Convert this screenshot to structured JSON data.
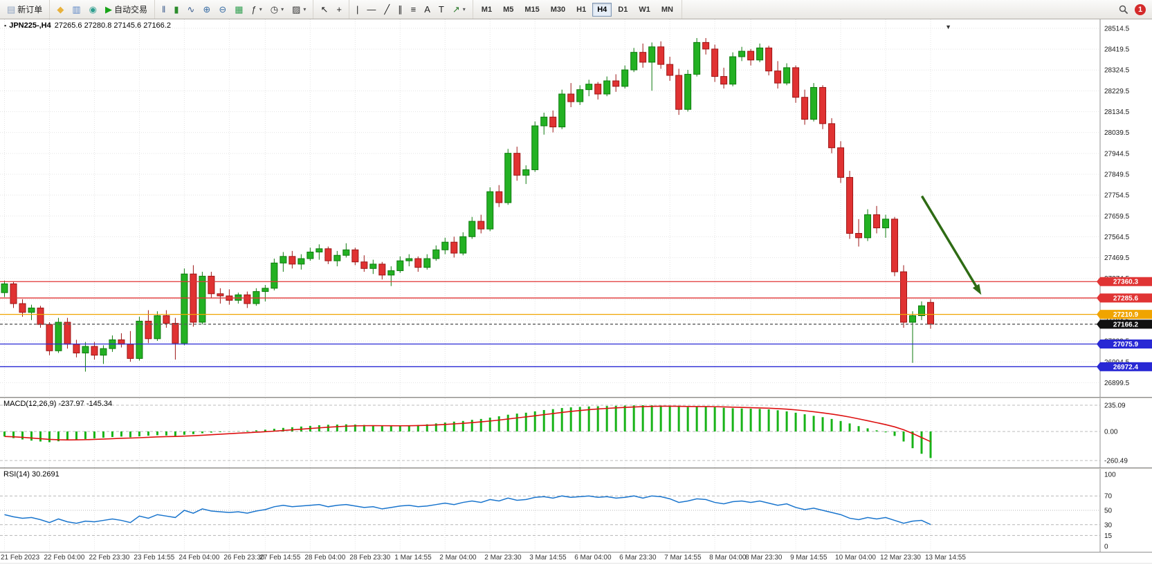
{
  "toolbar": {
    "new_order": {
      "label": "新订单",
      "icon": "order-ticket-icon",
      "glyph": "▤",
      "color": "#8fa3c0"
    },
    "quick_icons": [
      {
        "name": "metaeditor-button",
        "icon": "tools-icon",
        "glyph": "◆",
        "color": "#e8b23c"
      },
      {
        "name": "new-chart-button",
        "icon": "chart-window-icon",
        "glyph": "▥",
        "color": "#5a84c4"
      },
      {
        "name": "mql5-community-button",
        "icon": "globe-icon",
        "glyph": "◉",
        "color": "#2f9e8f"
      }
    ],
    "auto_trading": {
      "label": "自动交易",
      "icon": "play-icon",
      "glyph": "▶",
      "color": "#17a317"
    },
    "chart_tools": [
      {
        "name": "bar-chart-button",
        "icon": "ohlc-bars-icon",
        "glyph": "‖",
        "color": "#3a5a8c"
      },
      {
        "name": "candlestick-chart-button",
        "icon": "candlestick-icon",
        "glyph": "▮",
        "color": "#2c8c2c"
      },
      {
        "name": "line-chart-button",
        "icon": "line-chart-icon",
        "glyph": "∿",
        "color": "#3a5a8c"
      },
      {
        "name": "zoom-in-button",
        "icon": "zoom-in-icon",
        "glyph": "⊕",
        "color": "#3a6ea5"
      },
      {
        "name": "zoom-out-button",
        "icon": "zoom-out-icon",
        "glyph": "⊖",
        "color": "#3a6ea5"
      },
      {
        "name": "tile-windows-button",
        "icon": "tile-windows-icon",
        "glyph": "▦",
        "color": "#2f9e4f"
      },
      {
        "name": "indicators-button",
        "icon": "indicators-icon",
        "glyph": "ƒ",
        "color": "#333333",
        "dropdown": true
      },
      {
        "name": "periods-button",
        "icon": "clock-icon",
        "glyph": "◷",
        "color": "#333333",
        "dropdown": true
      },
      {
        "name": "templates-button",
        "icon": "template-icon",
        "glyph": "▨",
        "color": "#333333",
        "dropdown": true
      }
    ],
    "cursor_tools": [
      {
        "name": "cursor-button",
        "icon": "cursor-icon",
        "glyph": "↖",
        "color": "#222222"
      },
      {
        "name": "crosshair-button",
        "icon": "crosshair-icon",
        "glyph": "+",
        "color": "#222222"
      }
    ],
    "draw_tools": [
      {
        "name": "vertical-line-button",
        "icon": "vertical-line-icon",
        "glyph": "|",
        "color": "#222222"
      },
      {
        "name": "horizontal-line-button",
        "icon": "horizontal-line-icon",
        "glyph": "—",
        "color": "#222222"
      },
      {
        "name": "trendline-button",
        "icon": "trendline-icon",
        "glyph": "╱",
        "color": "#222222"
      },
      {
        "name": "channel-button",
        "icon": "channel-icon",
        "glyph": "∥",
        "color": "#222222"
      },
      {
        "name": "fibonacci-button",
        "icon": "fibonacci-icon",
        "glyph": "≡",
        "color": "#222222"
      },
      {
        "name": "text-button",
        "icon": "text-icon",
        "glyph": "A",
        "color": "#222222"
      },
      {
        "name": "label-button",
        "icon": "text-label-icon",
        "glyph": "T",
        "color": "#222222"
      },
      {
        "name": "arrows-button",
        "icon": "arrow-objects-icon",
        "glyph": "↗",
        "color": "#2c7a2c",
        "dropdown": true
      }
    ],
    "timeframes": [
      "M1",
      "M5",
      "M15",
      "M30",
      "H1",
      "H4",
      "D1",
      "W1",
      "MN"
    ],
    "active_timeframe": "H4",
    "notification_count": "1"
  },
  "chart": {
    "title": "JPN225-,H4",
    "ohlc": "27265.6 27280.8 27145.6 27166.2"
  },
  "indicators": {
    "macd_label": "MACD(12,26,9) -237.97 -145.34",
    "rsi_label": "RSI(14) 30.2691"
  },
  "chart_data": [
    {
      "type": "candlestick",
      "symbol": "JPN225-",
      "timeframe": "H4",
      "ohlc_current": {
        "open": 27265.6,
        "high": 27280.8,
        "low": 27145.6,
        "close": 27166.2
      },
      "y_axis": {
        "min": 26860,
        "max": 28530,
        "ticks": [
          28514.5,
          28419.5,
          28324.5,
          28229.5,
          28134.5,
          28039.5,
          27944.5,
          27849.5,
          27754.5,
          27659.5,
          27564.5,
          27469.5,
          27374.5,
          27279.5,
          27184.5,
          27089.5,
          26994.5,
          26899.5
        ]
      },
      "candle_area_frac": 0.85,
      "shift_marker_frac": 0.862,
      "x_labels": [
        "21 Feb 2023",
        "22 Feb 04:00",
        "22 Feb 23:30",
        "23 Feb 14:55",
        "24 Feb 04:00",
        "26 Feb 23:30",
        "27 Feb 14:55",
        "28 Feb 04:00",
        "28 Feb 23:30",
        "1 Mar 14:55",
        "2 Mar 04:00",
        "2 Mar 23:30",
        "3 Mar 14:55",
        "6 Mar 04:00",
        "6 Mar 23:30",
        "7 Mar 14:55",
        "8 Mar 04:00",
        "8 Mar 23:30",
        "9 Mar 14:55",
        "10 Mar 04:00",
        "12 Mar 23:30",
        "13 Mar 14:55"
      ],
      "x_label_indices": [
        0,
        5,
        10,
        15,
        20,
        25,
        29,
        34,
        39,
        44,
        49,
        54,
        59,
        64,
        69,
        74,
        79,
        83,
        88,
        93,
        98,
        103
      ],
      "candles": [
        [
          27310,
          27365,
          27290,
          27350
        ],
        [
          27350,
          27360,
          27240,
          27260
        ],
        [
          27260,
          27280,
          27200,
          27220
        ],
        [
          27220,
          27255,
          27185,
          27240
        ],
        [
          27240,
          27250,
          27150,
          27165
        ],
        [
          27165,
          27175,
          27025,
          27045
        ],
        [
          27045,
          27195,
          27035,
          27175
        ],
        [
          27175,
          27195,
          27055,
          27075
        ],
        [
          27075,
          27095,
          27015,
          27035
        ],
        [
          27035,
          27085,
          26950,
          27065
        ],
        [
          27065,
          27085,
          27005,
          27025
        ],
        [
          27025,
          27070,
          26985,
          27055
        ],
        [
          27055,
          27115,
          27040,
          27095
        ],
        [
          27095,
          27125,
          27060,
          27075
        ],
        [
          27075,
          27135,
          26995,
          27010
        ],
        [
          27010,
          27200,
          27000,
          27180
        ],
        [
          27180,
          27230,
          27080,
          27100
        ],
        [
          27100,
          27225,
          27090,
          27205
        ],
        [
          27205,
          27230,
          27150,
          27170
        ],
        [
          27170,
          27195,
          27005,
          27080
        ],
        [
          27080,
          27420,
          27070,
          27395
        ],
        [
          27395,
          27435,
          27155,
          27175
        ],
        [
          27175,
          27405,
          27165,
          27385
        ],
        [
          27385,
          27405,
          27285,
          27305
        ],
        [
          27305,
          27330,
          27260,
          27295
        ],
        [
          27295,
          27325,
          27255,
          27275
        ],
        [
          27275,
          27310,
          27260,
          27300
        ],
        [
          27300,
          27315,
          27240,
          27260
        ],
        [
          27260,
          27330,
          27250,
          27315
        ],
        [
          27315,
          27345,
          27270,
          27330
        ],
        [
          27330,
          27465,
          27320,
          27445
        ],
        [
          27445,
          27495,
          27405,
          27475
        ],
        [
          27475,
          27500,
          27420,
          27440
        ],
        [
          27440,
          27485,
          27415,
          27465
        ],
        [
          27465,
          27515,
          27455,
          27495
        ],
        [
          27495,
          27530,
          27460,
          27510
        ],
        [
          27510,
          27520,
          27440,
          27455
        ],
        [
          27455,
          27500,
          27430,
          27480
        ],
        [
          27480,
          27535,
          27470,
          27505
        ],
        [
          27505,
          27515,
          27435,
          27450
        ],
        [
          27450,
          27480,
          27405,
          27420
        ],
        [
          27420,
          27460,
          27395,
          27440
        ],
        [
          27440,
          27450,
          27370,
          27390
        ],
        [
          27390,
          27430,
          27340,
          27410
        ],
        [
          27410,
          27475,
          27400,
          27455
        ],
        [
          27455,
          27485,
          27430,
          27465
        ],
        [
          27465,
          27475,
          27405,
          27425
        ],
        [
          27425,
          27485,
          27415,
          27465
        ],
        [
          27465,
          27525,
          27455,
          27505
        ],
        [
          27505,
          27560,
          27485,
          27540
        ],
        [
          27540,
          27565,
          27470,
          27490
        ],
        [
          27490,
          27585,
          27480,
          27565
        ],
        [
          27565,
          27655,
          27555,
          27635
        ],
        [
          27635,
          27665,
          27580,
          27600
        ],
        [
          27600,
          27790,
          27590,
          27770
        ],
        [
          27770,
          27800,
          27700,
          27720
        ],
        [
          27720,
          27965,
          27710,
          27945
        ],
        [
          27945,
          27975,
          27820,
          27845
        ],
        [
          27845,
          27890,
          27805,
          27870
        ],
        [
          27870,
          28090,
          27860,
          28070
        ],
        [
          28070,
          28130,
          28030,
          28110
        ],
        [
          28110,
          28140,
          28040,
          28065
        ],
        [
          28065,
          28235,
          28055,
          28215
        ],
        [
          28215,
          28265,
          28155,
          28180
        ],
        [
          28180,
          28255,
          28165,
          28235
        ],
        [
          28235,
          28280,
          28205,
          28260
        ],
        [
          28260,
          28270,
          28190,
          28215
        ],
        [
          28215,
          28295,
          28205,
          28275
        ],
        [
          28275,
          28305,
          28225,
          28250
        ],
        [
          28250,
          28345,
          28240,
          28325
        ],
        [
          28325,
          28425,
          28315,
          28405
        ],
        [
          28405,
          28445,
          28335,
          28360
        ],
        [
          28360,
          28450,
          28230,
          28430
        ],
        [
          28430,
          28455,
          28330,
          28350
        ],
        [
          28350,
          28385,
          28275,
          28300
        ],
        [
          28300,
          28330,
          28120,
          28145
        ],
        [
          28145,
          28325,
          28135,
          28305
        ],
        [
          28305,
          28470,
          28295,
          28450
        ],
        [
          28450,
          28470,
          28395,
          28420
        ],
        [
          28420,
          28440,
          28270,
          28295
        ],
        [
          28295,
          28335,
          28240,
          28260
        ],
        [
          28260,
          28405,
          28250,
          28385
        ],
        [
          28385,
          28430,
          28365,
          28410
        ],
        [
          28410,
          28420,
          28345,
          28370
        ],
        [
          28370,
          28445,
          28360,
          28425
        ],
        [
          28425,
          28435,
          28300,
          28320
        ],
        [
          28320,
          28365,
          28240,
          28265
        ],
        [
          28265,
          28355,
          28255,
          28335
        ],
        [
          28335,
          28345,
          28175,
          28200
        ],
        [
          28200,
          28235,
          28075,
          28100
        ],
        [
          28100,
          28265,
          28090,
          28245
        ],
        [
          28245,
          28255,
          28055,
          28080
        ],
        [
          28080,
          28105,
          27945,
          27970
        ],
        [
          27970,
          28000,
          27810,
          27835
        ],
        [
          27835,
          27865,
          27555,
          27580
        ],
        [
          27580,
          27645,
          27520,
          27560
        ],
        [
          27560,
          27690,
          27545,
          27665
        ],
        [
          27665,
          27705,
          27580,
          27605
        ],
        [
          27605,
          27665,
          27560,
          27645
        ],
        [
          27645,
          27655,
          27385,
          27405
        ],
        [
          27405,
          27435,
          27150,
          27175
        ],
        [
          27175,
          27225,
          26990,
          27205
        ],
        [
          27205,
          27270,
          27185,
          27250
        ],
        [
          27265.6,
          27280.8,
          27145.6,
          27166.2
        ]
      ],
      "hlines": [
        {
          "price": 27360.3,
          "label": "27360.3",
          "color": "#e03434",
          "style": "solid"
        },
        {
          "price": 27285.6,
          "label": "27285.6",
          "color": "#e03434",
          "style": "solid"
        },
        {
          "price": 27210.9,
          "label": "27210.9",
          "color": "#f0a400",
          "style": "solid"
        },
        {
          "price": 27166.2,
          "label": "27166.2",
          "color": "#5a5a5a",
          "box_color": "#111111",
          "style": "dashed",
          "role": "bid"
        },
        {
          "price": 27075.9,
          "label": "27075.9",
          "color": "#2828d4",
          "style": "solid"
        },
        {
          "price": 26972.4,
          "label": "26972.4",
          "color": "#2828d4",
          "style": "solid"
        }
      ],
      "arrow": {
        "x1_frac": 0.838,
        "price1": 27750,
        "x2_frac": 0.892,
        "price2": 27300,
        "color": "#2e6b14"
      },
      "colors": {
        "up": "#23b123",
        "up_border": "#0d7a0d",
        "down": "#e03232",
        "down_border": "#9c1515",
        "grid": "#e4e4e4",
        "axis_text": "#1a1a1a"
      }
    },
    {
      "type": "macd_histogram",
      "label": "MACD(12,26,9)",
      "macd_value": -237.97,
      "signal_value": -145.34,
      "axis_ticks": [
        235.09,
        0.0,
        -260.49
      ],
      "range": {
        "min": -260.49,
        "max": 235.09
      },
      "histogram_color": "#17b317",
      "signal_color": "#dd1010",
      "values": [
        -45,
        -60,
        -72,
        -82,
        -90,
        -96,
        -88,
        -80,
        -74,
        -68,
        -62,
        -56,
        -50,
        -46,
        -52,
        -44,
        -38,
        -34,
        -36,
        -40,
        -30,
        -24,
        -16,
        -10,
        -6,
        -2,
        2,
        6,
        10,
        16,
        24,
        32,
        38,
        44,
        50,
        56,
        60,
        62,
        64,
        62,
        58,
        54,
        50,
        48,
        50,
        54,
        58,
        64,
        72,
        80,
        88,
        94,
        104,
        112,
        124,
        136,
        150,
        160,
        168,
        180,
        192,
        200,
        210,
        216,
        220,
        224,
        226,
        228,
        230,
        232,
        234,
        235,
        234,
        232,
        228,
        222,
        218,
        220,
        222,
        218,
        212,
        208,
        206,
        204,
        202,
        198,
        190,
        180,
        168,
        154,
        140,
        128,
        112,
        94,
        72,
        48,
        28,
        10,
        -8,
        -40,
        -90,
        -150,
        -200,
        -238
      ]
    },
    {
      "type": "line",
      "label": "RSI(14)",
      "current": 30.2691,
      "axis_ticks": [
        100,
        70,
        50,
        30,
        15,
        0
      ],
      "levels": [
        70,
        50,
        30,
        15
      ],
      "range": {
        "min": 0,
        "max": 100
      },
      "line_color": "#1874cd",
      "values": [
        44,
        41,
        39,
        40,
        37,
        33,
        38,
        34,
        32,
        35,
        34,
        36,
        38,
        36,
        33,
        42,
        39,
        44,
        42,
        40,
        50,
        46,
        52,
        49,
        48,
        47,
        48,
        46,
        49,
        51,
        55,
        57,
        55,
        56,
        57,
        58,
        55,
        57,
        58,
        56,
        54,
        55,
        52,
        54,
        56,
        57,
        55,
        56,
        58,
        60,
        58,
        61,
        63,
        61,
        65,
        63,
        67,
        64,
        65,
        68,
        69,
        67,
        70,
        68,
        69,
        70,
        68,
        69,
        67,
        68,
        70,
        67,
        70,
        69,
        66,
        61,
        63,
        66,
        65,
        61,
        59,
        62,
        63,
        61,
        63,
        60,
        57,
        59,
        54,
        51,
        53,
        50,
        47,
        44,
        39,
        37,
        40,
        38,
        40,
        36,
        32,
        35,
        36,
        30.27
      ]
    }
  ]
}
